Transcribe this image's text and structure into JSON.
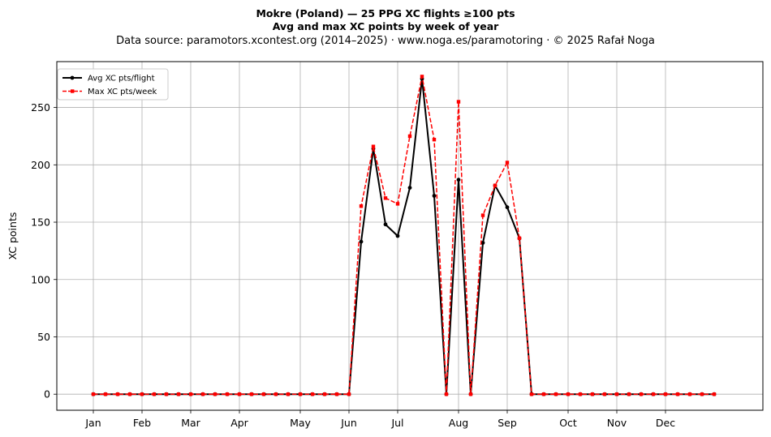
{
  "header": {
    "title_line1": "Mokre (Poland)  —  25 PPG XC flights ≥100 pts",
    "title_line2": "Avg and max XC points by week of year",
    "source_line": "Data source: paramotors.xcontest.org (2014–2025)  ·  www.noga.es/paramotoring  ·  © 2025 Rafał Noga"
  },
  "chart_data": {
    "type": "line",
    "title": "Mokre (Poland)  —  25 PPG XC flights ≥100 pts",
    "subtitle": "Avg and max XC points by week of year",
    "xlabel": "",
    "ylabel": "XC points",
    "xlim": [
      -2,
      56
    ],
    "ylim": [
      -14,
      290
    ],
    "grid": true,
    "legend_position": "top-left",
    "x_ticks": [
      {
        "label": "Jan",
        "week": 1
      },
      {
        "label": "Feb",
        "week": 5
      },
      {
        "label": "Mar",
        "week": 9
      },
      {
        "label": "Apr",
        "week": 13
      },
      {
        "label": "May",
        "week": 18
      },
      {
        "label": "Jun",
        "week": 22
      },
      {
        "label": "Jul",
        "week": 26
      },
      {
        "label": "Aug",
        "week": 31
      },
      {
        "label": "Sep",
        "week": 35
      },
      {
        "label": "Oct",
        "week": 40
      },
      {
        "label": "Nov",
        "week": 44
      },
      {
        "label": "Dec",
        "week": 48
      }
    ],
    "y_ticks": [
      0,
      50,
      100,
      150,
      200,
      250
    ],
    "x": [
      1,
      2,
      3,
      4,
      5,
      6,
      7,
      8,
      9,
      10,
      11,
      12,
      13,
      14,
      15,
      16,
      17,
      18,
      19,
      20,
      21,
      22,
      23,
      24,
      25,
      26,
      27,
      28,
      29,
      30,
      31,
      32,
      33,
      34,
      35,
      36,
      37,
      38,
      39,
      40,
      41,
      42,
      43,
      44,
      45,
      46,
      47,
      48,
      49,
      50,
      51,
      52
    ],
    "series": [
      {
        "name": "Avg XC pts/flight",
        "color": "#000000",
        "style": "solid",
        "marker": "circle",
        "values": [
          0,
          0,
          0,
          0,
          0,
          0,
          0,
          0,
          0,
          0,
          0,
          0,
          0,
          0,
          0,
          0,
          0,
          0,
          0,
          0,
          0,
          0,
          133,
          214,
          148,
          138,
          180,
          275,
          173,
          0,
          187,
          0,
          132,
          182,
          163,
          136,
          0,
          0,
          0,
          0,
          0,
          0,
          0,
          0,
          0,
          0,
          0,
          0,
          0,
          0,
          0,
          0
        ]
      },
      {
        "name": "Max XC pts/week",
        "color": "#ff0000",
        "style": "dashed",
        "marker": "square",
        "values": [
          0,
          0,
          0,
          0,
          0,
          0,
          0,
          0,
          0,
          0,
          0,
          0,
          0,
          0,
          0,
          0,
          0,
          0,
          0,
          0,
          0,
          0,
          164,
          216,
          171,
          166,
          225,
          277,
          222,
          0,
          255,
          0,
          156,
          182,
          202,
          136,
          0,
          0,
          0,
          0,
          0,
          0,
          0,
          0,
          0,
          0,
          0,
          0,
          0,
          0,
          0,
          0
        ]
      }
    ]
  }
}
